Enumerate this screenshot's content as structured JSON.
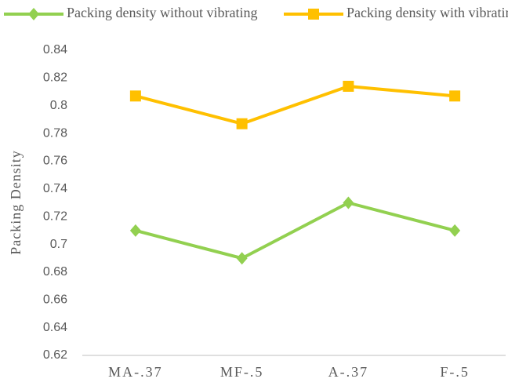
{
  "chart_data": {
    "type": "line",
    "categories": [
      "MA-.37",
      "MF-.5",
      "A-.37",
      "F-.5"
    ],
    "series": [
      {
        "name": "Packing density without vibrating",
        "color": "#92d050",
        "marker": "diamond",
        "values": [
          0.71,
          0.69,
          0.73,
          0.71
        ]
      },
      {
        "name": "Packing density with vibrating",
        "color": "#ffc000",
        "marker": "square",
        "values": [
          0.807,
          0.787,
          0.814,
          0.807
        ]
      }
    ],
    "y_label": "Packing  Density",
    "ylim": [
      0.62,
      0.84
    ],
    "yticks": [
      0.62,
      0.64,
      0.66,
      0.68,
      0.7,
      0.72,
      0.74,
      0.76,
      0.78,
      0.8,
      0.82,
      0.84
    ],
    "grid": false,
    "legend": "top"
  }
}
